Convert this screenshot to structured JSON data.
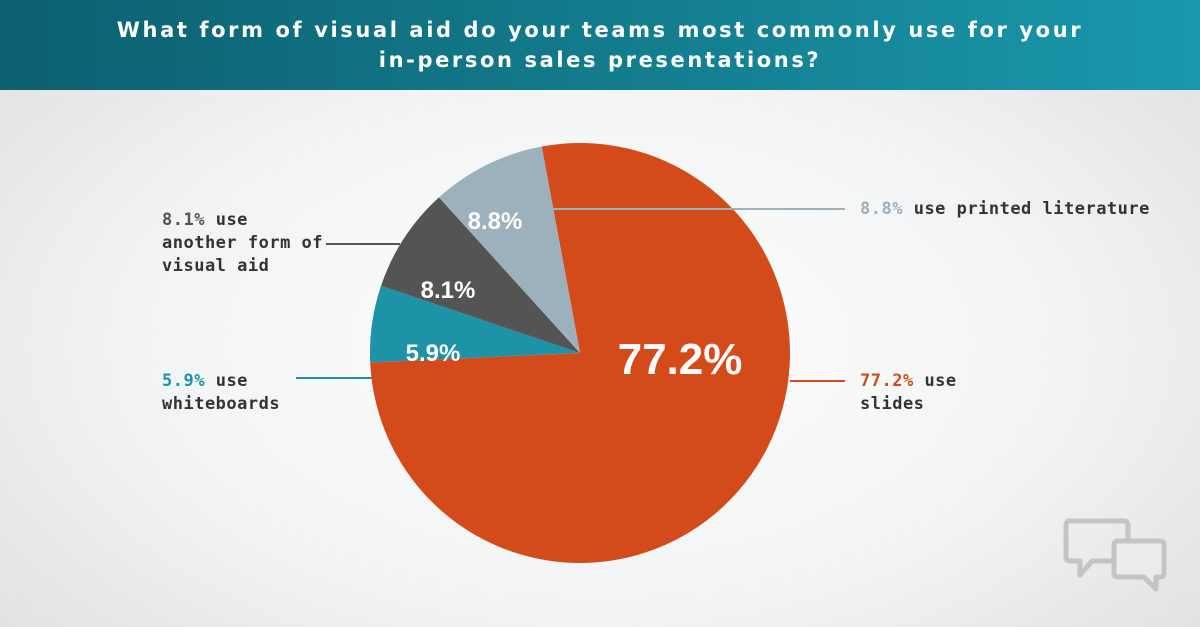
{
  "header": {
    "title": "What form of visual aid do your teams most commonly use for your in-person sales presentations?"
  },
  "chart_data": {
    "type": "pie",
    "title": "What form of visual aid do your teams most commonly use for your in-person sales presentations?",
    "slices": [
      {
        "label": "use slides",
        "value": 77.2,
        "display": "77.2%",
        "color": "#d34a1b",
        "callout_pct": "77.2%",
        "callout_text": "use slides"
      },
      {
        "label": "use whiteboards",
        "value": 5.9,
        "display": "5.9%",
        "color": "#1e92a7",
        "callout_pct": "5.9%",
        "callout_text": "use whiteboards"
      },
      {
        "label": "use another form of visual aid",
        "value": 8.1,
        "display": "8.1%",
        "color": "#545454",
        "callout_pct": "8.1%",
        "callout_text": "use another form of visual aid"
      },
      {
        "label": "use printed literature",
        "value": 8.8,
        "display": "8.8%",
        "color": "#9cb1bc",
        "callout_pct": "8.8%",
        "callout_text": "use printed literature"
      }
    ],
    "legend": "callouts"
  },
  "colors": {
    "header_start": "#0c5f6f",
    "header_end": "#1a98ad",
    "callout_text": "#333333",
    "leader_whiteboards": "#1e92a7",
    "leader_other": "#545454",
    "leader_printed": "#9cb1bc",
    "leader_slides": "#d34a1b"
  },
  "icons": {
    "corner": "speech-bubbles-icon"
  }
}
